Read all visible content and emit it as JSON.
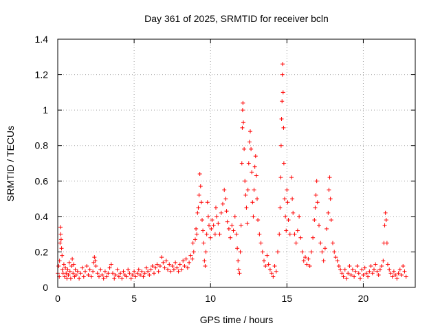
{
  "chart_data": {
    "type": "scatter",
    "title": "Day 361 of 2025, SRMTID for receiver bcln",
    "xlabel": "GPS time / hours",
    "ylabel": "SRMTID / TECUs",
    "xlim": [
      0,
      23.4
    ],
    "ylim": [
      0,
      1.4
    ],
    "xticks": [
      0,
      5,
      10,
      15,
      20
    ],
    "yticks": [
      0,
      0.2,
      0.4,
      0.6,
      0.8,
      1,
      1.2,
      1.4
    ],
    "xtick_labels": [
      "0",
      "5",
      "10",
      "15",
      "20"
    ],
    "ytick_labels": [
      "0",
      "0.2",
      "0.4",
      "0.6",
      "0.8",
      "1",
      "1.2",
      "1.4"
    ],
    "grid": true,
    "marker": "+",
    "color": "#ff0000",
    "series": [
      {
        "name": "SRMTID",
        "points": [
          [
            0.0,
            0.08
          ],
          [
            0.05,
            0.12
          ],
          [
            0.1,
            0.06
          ],
          [
            0.12,
            0.15
          ],
          [
            0.15,
            0.25
          ],
          [
            0.18,
            0.34
          ],
          [
            0.2,
            0.3
          ],
          [
            0.22,
            0.27
          ],
          [
            0.25,
            0.22
          ],
          [
            0.28,
            0.18
          ],
          [
            0.3,
            0.1
          ],
          [
            0.35,
            0.08
          ],
          [
            0.4,
            0.13
          ],
          [
            0.45,
            0.06
          ],
          [
            0.5,
            0.11
          ],
          [
            0.55,
            0.08
          ],
          [
            0.6,
            0.05
          ],
          [
            0.65,
            0.1
          ],
          [
            0.7,
            0.07
          ],
          [
            0.75,
            0.14
          ],
          [
            0.8,
            0.09
          ],
          [
            0.85,
            0.05
          ],
          [
            0.9,
            0.12
          ],
          [
            0.95,
            0.16
          ],
          [
            1.0,
            0.08
          ],
          [
            1.05,
            0.13
          ],
          [
            1.1,
            0.06
          ],
          [
            1.15,
            0.1
          ],
          [
            1.2,
            0.07
          ],
          [
            1.3,
            0.09
          ],
          [
            1.4,
            0.05
          ],
          [
            1.5,
            0.08
          ],
          [
            1.6,
            0.11
          ],
          [
            1.7,
            0.06
          ],
          [
            1.8,
            0.09
          ],
          [
            1.9,
            0.12
          ],
          [
            2.0,
            0.07
          ],
          [
            2.1,
            0.1
          ],
          [
            2.2,
            0.06
          ],
          [
            2.3,
            0.09
          ],
          [
            2.35,
            0.14
          ],
          [
            2.4,
            0.17
          ],
          [
            2.45,
            0.15
          ],
          [
            2.5,
            0.12
          ],
          [
            2.6,
            0.08
          ],
          [
            2.7,
            0.06
          ],
          [
            2.8,
            0.1
          ],
          [
            2.9,
            0.07
          ],
          [
            3.0,
            0.05
          ],
          [
            3.1,
            0.09
          ],
          [
            3.2,
            0.06
          ],
          [
            3.3,
            0.08
          ],
          [
            3.4,
            0.11
          ],
          [
            3.5,
            0.13
          ],
          [
            3.6,
            0.08
          ],
          [
            3.7,
            0.05
          ],
          [
            3.8,
            0.07
          ],
          [
            3.9,
            0.1
          ],
          [
            4.0,
            0.06
          ],
          [
            4.1,
            0.08
          ],
          [
            4.2,
            0.05
          ],
          [
            4.3,
            0.09
          ],
          [
            4.4,
            0.07
          ],
          [
            4.5,
            0.06
          ],
          [
            4.6,
            0.1
          ],
          [
            4.7,
            0.08
          ],
          [
            4.8,
            0.05
          ],
          [
            4.9,
            0.07
          ],
          [
            5.0,
            0.09
          ],
          [
            5.1,
            0.06
          ],
          [
            5.2,
            0.08
          ],
          [
            5.3,
            0.1
          ],
          [
            5.4,
            0.07
          ],
          [
            5.5,
            0.09
          ],
          [
            5.6,
            0.06
          ],
          [
            5.7,
            0.08
          ],
          [
            5.8,
            0.11
          ],
          [
            5.9,
            0.09
          ],
          [
            6.0,
            0.07
          ],
          [
            6.1,
            0.1
          ],
          [
            6.2,
            0.12
          ],
          [
            6.3,
            0.08
          ],
          [
            6.4,
            0.11
          ],
          [
            6.5,
            0.13
          ],
          [
            6.6,
            0.09
          ],
          [
            6.7,
            0.12
          ],
          [
            6.8,
            0.17
          ],
          [
            6.9,
            0.14
          ],
          [
            7.0,
            0.11
          ],
          [
            7.1,
            0.15
          ],
          [
            7.2,
            0.1
          ],
          [
            7.3,
            0.13
          ],
          [
            7.4,
            0.09
          ],
          [
            7.5,
            0.12
          ],
          [
            7.6,
            0.1
          ],
          [
            7.7,
            0.14
          ],
          [
            7.8,
            0.11
          ],
          [
            7.9,
            0.09
          ],
          [
            8.0,
            0.13
          ],
          [
            8.1,
            0.1
          ],
          [
            8.2,
            0.15
          ],
          [
            8.3,
            0.12
          ],
          [
            8.4,
            0.16
          ],
          [
            8.5,
            0.11
          ],
          [
            8.6,
            0.14
          ],
          [
            8.7,
            0.18
          ],
          [
            8.8,
            0.16
          ],
          [
            8.85,
            0.25
          ],
          [
            8.9,
            0.2
          ],
          [
            9.0,
            0.27
          ],
          [
            9.05,
            0.33
          ],
          [
            9.1,
            0.3
          ],
          [
            9.15,
            0.42
          ],
          [
            9.2,
            0.45
          ],
          [
            9.25,
            0.52
          ],
          [
            9.3,
            0.64
          ],
          [
            9.35,
            0.57
          ],
          [
            9.4,
            0.48
          ],
          [
            9.45,
            0.38
          ],
          [
            9.5,
            0.32
          ],
          [
            9.55,
            0.25
          ],
          [
            9.6,
            0.15
          ],
          [
            9.65,
            0.12
          ],
          [
            9.7,
            0.2
          ],
          [
            9.75,
            0.3
          ],
          [
            9.8,
            0.48
          ],
          [
            9.85,
            0.4
          ],
          [
            9.9,
            0.35
          ],
          [
            10.0,
            0.28
          ],
          [
            10.05,
            0.33
          ],
          [
            10.1,
            0.38
          ],
          [
            10.2,
            0.35
          ],
          [
            10.3,
            0.3
          ],
          [
            10.35,
            0.45
          ],
          [
            10.4,
            0.4
          ],
          [
            10.5,
            0.36
          ],
          [
            10.6,
            0.3
          ],
          [
            10.7,
            0.42
          ],
          [
            10.8,
            0.47
          ],
          [
            10.9,
            0.55
          ],
          [
            11.0,
            0.5
          ],
          [
            11.05,
            0.43
          ],
          [
            11.1,
            0.37
          ],
          [
            11.2,
            0.33
          ],
          [
            11.3,
            0.28
          ],
          [
            11.4,
            0.35
          ],
          [
            11.5,
            0.32
          ],
          [
            11.6,
            0.4
          ],
          [
            11.7,
            0.3
          ],
          [
            11.75,
            0.22
          ],
          [
            11.8,
            0.15
          ],
          [
            11.85,
            0.1
          ],
          [
            11.9,
            0.08
          ],
          [
            11.95,
            0.2
          ],
          [
            12.0,
            0.35
          ],
          [
            12.05,
            0.7
          ],
          [
            12.08,
            0.9
          ],
          [
            12.1,
            1.0
          ],
          [
            12.12,
            1.04
          ],
          [
            12.15,
            0.93
          ],
          [
            12.2,
            0.78
          ],
          [
            12.25,
            0.6
          ],
          [
            12.3,
            0.52
          ],
          [
            12.35,
            0.45
          ],
          [
            12.4,
            0.36
          ],
          [
            12.45,
            0.55
          ],
          [
            12.5,
            0.7
          ],
          [
            12.55,
            0.82
          ],
          [
            12.6,
            0.88
          ],
          [
            12.65,
            0.78
          ],
          [
            12.7,
            0.65
          ],
          [
            12.75,
            0.48
          ],
          [
            12.8,
            0.4
          ],
          [
            12.85,
            0.55
          ],
          [
            12.9,
            0.68
          ],
          [
            12.95,
            0.74
          ],
          [
            13.0,
            0.63
          ],
          [
            13.05,
            0.5
          ],
          [
            13.1,
            0.38
          ],
          [
            13.2,
            0.3
          ],
          [
            13.3,
            0.25
          ],
          [
            13.4,
            0.2
          ],
          [
            13.5,
            0.15
          ],
          [
            13.6,
            0.12
          ],
          [
            13.7,
            0.18
          ],
          [
            13.8,
            0.13
          ],
          [
            13.9,
            0.1
          ],
          [
            14.0,
            0.08
          ],
          [
            14.1,
            0.06
          ],
          [
            14.2,
            0.12
          ],
          [
            14.3,
            0.09
          ],
          [
            14.4,
            0.2
          ],
          [
            14.5,
            0.3
          ],
          [
            14.55,
            0.45
          ],
          [
            14.6,
            0.62
          ],
          [
            14.62,
            0.8
          ],
          [
            14.65,
            0.95
          ],
          [
            14.68,
            1.05
          ],
          [
            14.7,
            1.2
          ],
          [
            14.72,
            1.26
          ],
          [
            14.75,
            1.1
          ],
          [
            14.78,
            0.9
          ],
          [
            14.8,
            0.7
          ],
          [
            14.85,
            0.5
          ],
          [
            14.9,
            0.4
          ],
          [
            14.95,
            0.32
          ],
          [
            15.0,
            0.55
          ],
          [
            15.05,
            0.48
          ],
          [
            15.1,
            0.38
          ],
          [
            15.2,
            0.3
          ],
          [
            15.3,
            0.62
          ],
          [
            15.35,
            0.5
          ],
          [
            15.4,
            0.42
          ],
          [
            15.5,
            0.3
          ],
          [
            15.6,
            0.25
          ],
          [
            15.7,
            0.32
          ],
          [
            15.8,
            0.4
          ],
          [
            15.9,
            0.28
          ],
          [
            16.0,
            0.2
          ],
          [
            16.1,
            0.15
          ],
          [
            16.2,
            0.17
          ],
          [
            16.3,
            0.13
          ],
          [
            16.4,
            0.16
          ],
          [
            16.5,
            0.12
          ],
          [
            16.6,
            0.2
          ],
          [
            16.7,
            0.28
          ],
          [
            16.8,
            0.38
          ],
          [
            16.85,
            0.45
          ],
          [
            16.9,
            0.52
          ],
          [
            16.95,
            0.6
          ],
          [
            17.0,
            0.48
          ],
          [
            17.1,
            0.35
          ],
          [
            17.2,
            0.25
          ],
          [
            17.3,
            0.2
          ],
          [
            17.4,
            0.15
          ],
          [
            17.5,
            0.22
          ],
          [
            17.6,
            0.33
          ],
          [
            17.7,
            0.42
          ],
          [
            17.75,
            0.55
          ],
          [
            17.8,
            0.62
          ],
          [
            17.85,
            0.5
          ],
          [
            17.9,
            0.38
          ],
          [
            18.0,
            0.25
          ],
          [
            18.1,
            0.2
          ],
          [
            18.2,
            0.17
          ],
          [
            18.3,
            0.15
          ],
          [
            18.4,
            0.12
          ],
          [
            18.5,
            0.1
          ],
          [
            18.6,
            0.08
          ],
          [
            18.7,
            0.06
          ],
          [
            18.8,
            0.1
          ],
          [
            18.9,
            0.05
          ],
          [
            19.0,
            0.08
          ],
          [
            19.1,
            0.12
          ],
          [
            19.2,
            0.07
          ],
          [
            19.3,
            0.1
          ],
          [
            19.4,
            0.06
          ],
          [
            19.5,
            0.09
          ],
          [
            19.6,
            0.12
          ],
          [
            19.7,
            0.08
          ],
          [
            19.8,
            0.05
          ],
          [
            19.9,
            0.1
          ],
          [
            20.0,
            0.07
          ],
          [
            20.1,
            0.11
          ],
          [
            20.2,
            0.08
          ],
          [
            20.3,
            0.06
          ],
          [
            20.4,
            0.09
          ],
          [
            20.5,
            0.12
          ],
          [
            20.6,
            0.08
          ],
          [
            20.7,
            0.1
          ],
          [
            20.8,
            0.13
          ],
          [
            20.9,
            0.09
          ],
          [
            21.0,
            0.07
          ],
          [
            21.1,
            0.1
          ],
          [
            21.2,
            0.12
          ],
          [
            21.3,
            0.15
          ],
          [
            21.35,
            0.25
          ],
          [
            21.4,
            0.35
          ],
          [
            21.45,
            0.42
          ],
          [
            21.5,
            0.38
          ],
          [
            21.55,
            0.25
          ],
          [
            21.6,
            0.13
          ],
          [
            21.7,
            0.1
          ],
          [
            21.8,
            0.08
          ],
          [
            21.9,
            0.06
          ],
          [
            22.0,
            0.09
          ],
          [
            22.1,
            0.07
          ],
          [
            22.2,
            0.05
          ],
          [
            22.3,
            0.08
          ],
          [
            22.4,
            0.1
          ],
          [
            22.5,
            0.07
          ],
          [
            22.6,
            0.12
          ],
          [
            22.7,
            0.09
          ],
          [
            22.8,
            0.06
          ]
        ]
      }
    ]
  }
}
